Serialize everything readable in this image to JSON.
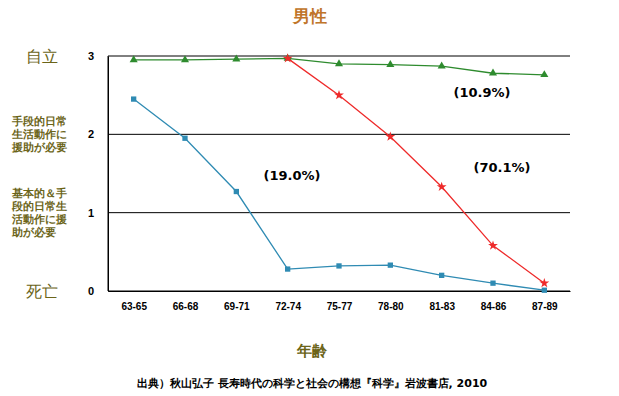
{
  "chart_data": {
    "type": "line",
    "title": "男性",
    "x_label": "年齢",
    "source": "出典）秋山弘子 長寿時代の科学と社会の構想『科学』岩波書店, 2010",
    "categories": [
      "63-65",
      "66-68",
      "69-71",
      "72-74",
      "75-77",
      "78-80",
      "81-83",
      "84-86",
      "87-89"
    ],
    "series": [
      {
        "name": "(10.9%)",
        "color": "#2e8b2e",
        "marker": "triangle",
        "values": [
          2.95,
          2.95,
          2.96,
          2.97,
          2.9,
          2.89,
          2.87,
          2.78,
          2.76
        ]
      },
      {
        "name": "(70.1%)",
        "color": "#ee2a2a",
        "marker": "star",
        "values": [
          null,
          null,
          null,
          2.97,
          2.5,
          1.97,
          1.33,
          0.58,
          0.1
        ]
      },
      {
        "name": "(19.0%)",
        "color": "#2f8bb3",
        "marker": "square",
        "values": [
          2.45,
          1.95,
          1.27,
          0.28,
          0.32,
          0.33,
          0.2,
          0.1,
          0.01
        ]
      }
    ],
    "ylim": [
      0,
      3
    ],
    "yticks": [
      0,
      1,
      2,
      3
    ],
    "y_level_labels": [
      {
        "value": 3,
        "label": "自立"
      },
      {
        "value": 2,
        "label": "手段的日常生活動作に援助が必要"
      },
      {
        "value": 1,
        "label": "基本的＆手段的日常生活動作に援助が必要"
      },
      {
        "value": 0,
        "label": "死亡"
      }
    ],
    "grid": true
  }
}
